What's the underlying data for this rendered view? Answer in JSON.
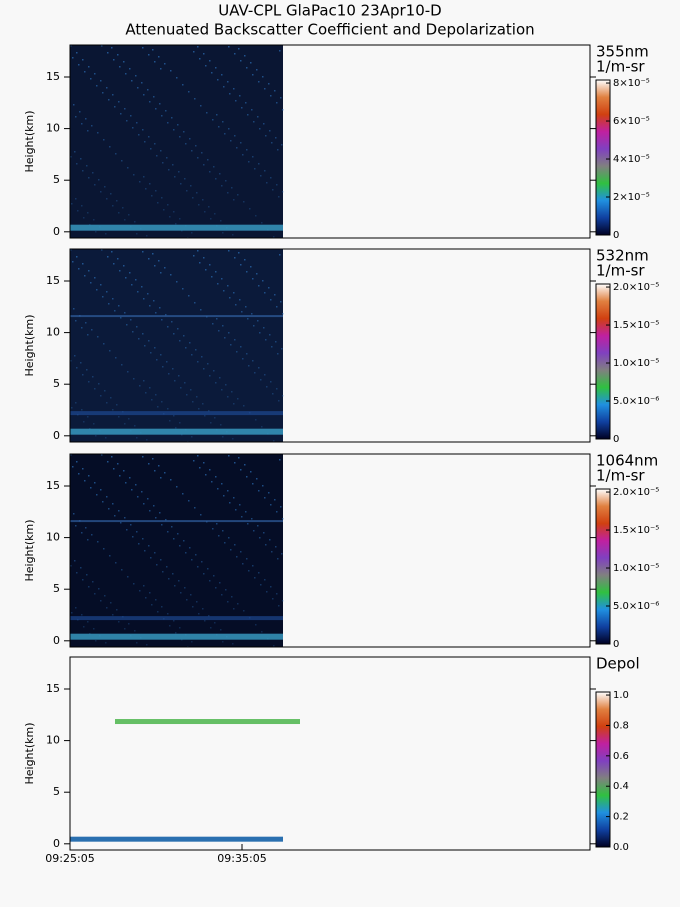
{
  "title": "UAV-CPL GlaPac10 23Apr10-D",
  "subtitle": "Attenuated Backscatter Coefficient and Depolarization",
  "chart_data": [
    {
      "type": "heatmap",
      "ylabel": "Height(km)",
      "ylim": [
        -0.6,
        18.1
      ],
      "yticks": [
        0,
        5,
        10,
        15
      ],
      "background": "#0a1633",
      "colorbar": {
        "title": [
          "355nm",
          "1/m-sr"
        ],
        "lim": [
          0,
          8.16e-05
        ],
        "ticks": [
          0,
          {
            "value": 2e-05,
            "label": "2×10⁻⁵"
          },
          {
            "value": 4e-05,
            "label": "4×10⁻⁵"
          },
          {
            "value": 6e-05,
            "label": "6×10⁻⁵"
          },
          {
            "value": 8e-05,
            "label": "8×10⁻⁵"
          }
        ],
        "colors": [
          "#000022",
          "#1040a0",
          "#2090e0",
          "#30c040",
          "#808080",
          "#8040c0",
          "#c020a0",
          "#d04010",
          "#e08040",
          "#ffffff"
        ]
      }
    },
    {
      "type": "heatmap",
      "ylabel": "Height(km)",
      "ylim": [
        -0.6,
        18.1
      ],
      "yticks": [
        0,
        5,
        10,
        15
      ],
      "background": "#0b1a3a",
      "colorbar": {
        "title": [
          "532nm",
          "1/m-sr"
        ],
        "lim": [
          0,
          2.04e-05
        ],
        "ticks": [
          0,
          {
            "value": 5e-06,
            "label": "5.0×10⁻⁶"
          },
          {
            "value": 1e-05,
            "label": "1.0×10⁻⁵"
          },
          {
            "value": 1.5e-05,
            "label": "1.5×10⁻⁵"
          },
          {
            "value": 2e-05,
            "label": "2.0×10⁻⁵"
          }
        ],
        "colors": [
          "#000022",
          "#1040a0",
          "#2090e0",
          "#30c040",
          "#808080",
          "#8040c0",
          "#c020a0",
          "#d04010",
          "#e08040",
          "#ffffff"
        ]
      }
    },
    {
      "type": "heatmap",
      "ylabel": "Height(km)",
      "ylim": [
        -0.6,
        18.1
      ],
      "yticks": [
        0,
        5,
        10,
        15
      ],
      "background": "#050d26",
      "colorbar": {
        "title": [
          "1064nm",
          "1/m-sr"
        ],
        "lim": [
          0,
          2.04e-05
        ],
        "ticks": [
          0,
          {
            "value": 5e-06,
            "label": "5.0×10⁻⁶"
          },
          {
            "value": 1e-05,
            "label": "1.0×10⁻⁵"
          },
          {
            "value": 1.5e-05,
            "label": "1.5×10⁻⁵"
          },
          {
            "value": 2e-05,
            "label": "2.0×10⁻⁵"
          }
        ],
        "colors": [
          "#000022",
          "#1040a0",
          "#2090e0",
          "#30c040",
          "#808080",
          "#8040c0",
          "#c020a0",
          "#d04010",
          "#e08040",
          "#ffffff"
        ]
      }
    },
    {
      "type": "heatmap",
      "ylabel": "Height(km)",
      "ylim": [
        -0.6,
        18.1
      ],
      "yticks": [
        0,
        5,
        10,
        15
      ],
      "colorbar": {
        "title": [
          "Depol"
        ],
        "lim": [
          0,
          1.02
        ],
        "ticks": [
          {
            "value": 0,
            "label": "0.0"
          },
          0.2,
          0.4,
          0.6,
          0.8,
          {
            "value": 1,
            "label": "1.0"
          }
        ],
        "colors": [
          "#000022",
          "#1040a0",
          "#2090e0",
          "#30c040",
          "#808080",
          "#8040c0",
          "#c020a0",
          "#d04010",
          "#e08040",
          "#ffffff"
        ]
      },
      "xticks": [
        "09:25:05",
        "09:35:05"
      ]
    }
  ]
}
